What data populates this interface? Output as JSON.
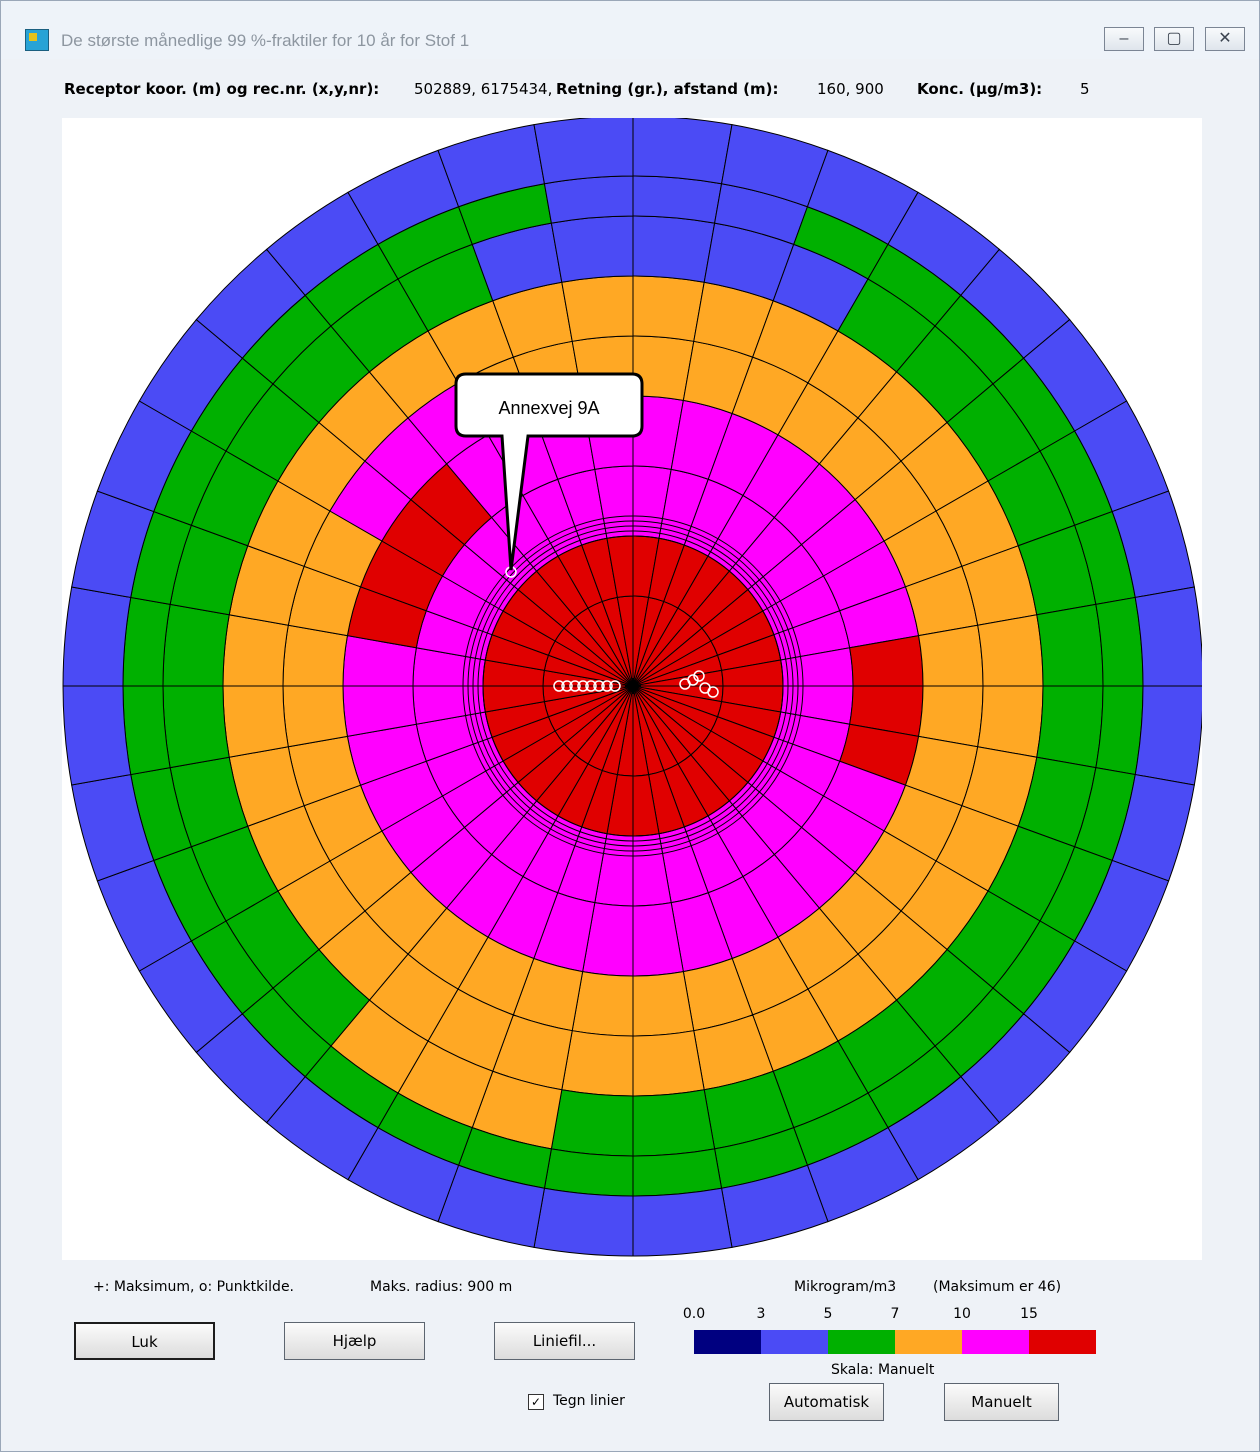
{
  "window": {
    "title": "De største månedlige 99 %-fraktiler for 10 år for Stof 1",
    "minimize_glyph": "–",
    "maximize_glyph": "▢",
    "close_glyph": "✕"
  },
  "header": {
    "receptor_label": "Receptor koor. (m) og rec.nr. (x,y,nr):",
    "receptor_value": "502889, 6175434,",
    "direction_label": "Retning (gr.), afstand (m):",
    "direction_value": "160, 900",
    "conc_label": "Konc. (µg/m3):",
    "conc_value": "5"
  },
  "plot": {
    "callout_label": "Annexvej 9A"
  },
  "footer": {
    "symbol_legend": "+: Maksimum,  o: Punktkilde.",
    "max_radius": "Maks. radius:  900 m",
    "unit_label": "Mikrogram/m3",
    "maximum_label": "(Maksimum er  46)",
    "scale_ticks": [
      "0.0",
      "3",
      "5",
      "7",
      "10",
      "15"
    ],
    "scale_colors": [
      "#000080",
      "#4b4bf5",
      "#00b000",
      "#ffa824",
      "#ff00ff",
      "#e00000"
    ],
    "scale_label": "Skala:  Manuelt",
    "close_button": "Luk",
    "help_button": "Hjælp",
    "linefile_button": "Liniefil...",
    "draw_lines_label": "Tegn linier",
    "draw_lines_checked": true,
    "auto_button": "Automatisk",
    "manual_button": "Manuelt"
  }
}
